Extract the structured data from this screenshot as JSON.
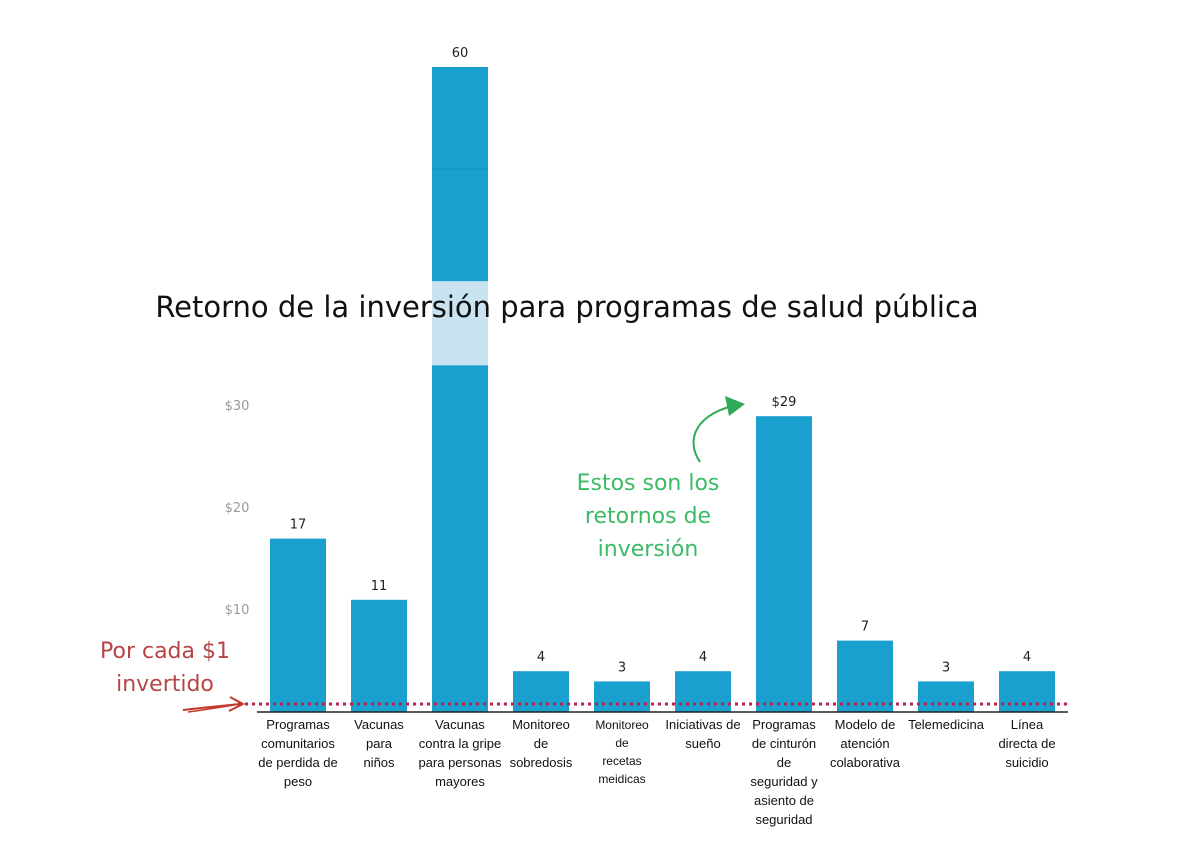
{
  "chart_data": {
    "type": "bar",
    "title": "Retorno de la inversión para programas de salud pública",
    "categories": [
      [
        "Programas",
        "comunitarios",
        "de perdida de",
        "peso"
      ],
      [
        "Vacunas",
        "para",
        "niños"
      ],
      [
        "Vacunas",
        "contra la gripe",
        "para personas",
        "mayores"
      ],
      [
        "Monitoreo",
        "de",
        "sobredosis"
      ],
      [
        "Monitoreo",
        "de",
        "recetas",
        "meidicas"
      ],
      [
        "Iniciativas de",
        "sueño"
      ],
      [
        "Programas",
        "de cinturón",
        "de",
        "seguridad y",
        "asiento de",
        "seguridad"
      ],
      [
        "Modelo de",
        "atención",
        "colaborativa"
      ],
      [
        "Telemedicina"
      ],
      [
        "Línea",
        "directa de",
        "suicidio"
      ]
    ],
    "values": [
      17,
      11,
      60,
      4,
      3,
      4,
      29,
      7,
      3,
      4
    ],
    "value_labels": [
      "17",
      "11",
      "60",
      "4",
      "3",
      "4",
      "$29",
      "7",
      "3",
      "4"
    ],
    "yticks": [
      {
        "value": 10,
        "label": "$10"
      },
      {
        "value": 20,
        "label": "$20"
      },
      {
        "value": 30,
        "label": "$30"
      }
    ],
    "broken_axis": {
      "bar_index": 2,
      "break_from": 34,
      "break_to": 52
    },
    "ylim": [
      0,
      60
    ],
    "reference_line": {
      "value": 1,
      "style": "dotted"
    },
    "grid": false,
    "bar_color": "#1aa0cf",
    "reference_color": "#b8234a",
    "annotations": {
      "baseline_note": [
        "Por cada $1",
        "invertido"
      ],
      "returns_note": [
        "Estos son los",
        "retornos de",
        "inversión"
      ]
    },
    "colors": {
      "bar": "#1aa0cf",
      "break_band": "#c9e3f1",
      "reference": "#b8234a",
      "red_text": "#b54545",
      "green_text": "#3cba66",
      "green_arrow": "#2eaa58",
      "red_arrow": "#c0392b"
    }
  }
}
